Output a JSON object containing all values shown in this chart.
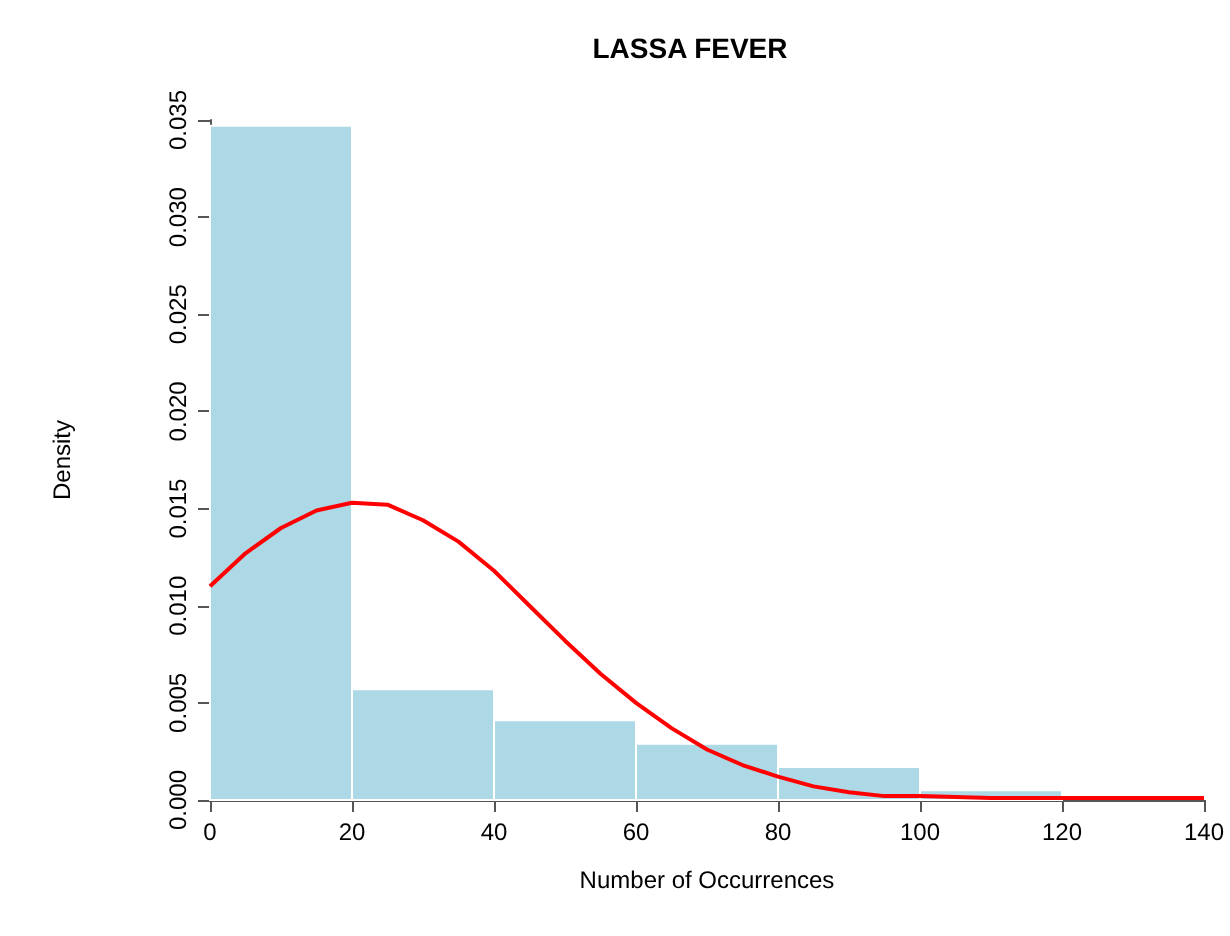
{
  "chart_data": {
    "type": "histogram",
    "title": "LASSA FEVER",
    "xlabel": "Number of Occurrences",
    "ylabel": "Density",
    "series": [
      {
        "color": "#add8e6",
        "bins": [
          0,
          20,
          40,
          60,
          80,
          100,
          120
        ],
        "values": [
          0.0347,
          0.0057,
          0.0041,
          0.0029,
          0.0017,
          0.0005
        ]
      },
      {
        "type": "line",
        "color": "#ff0000",
        "x": [
          0,
          5,
          10,
          15,
          20,
          25,
          30,
          35,
          40,
          45,
          50,
          55,
          60,
          65,
          70,
          75,
          80,
          85,
          90,
          95,
          100,
          110,
          120,
          130,
          140
        ],
        "values": [
          0.011,
          0.0127,
          0.014,
          0.0149,
          0.0153,
          0.0152,
          0.0144,
          0.0133,
          0.0118,
          0.01,
          0.0082,
          0.0065,
          0.005,
          0.0037,
          0.0026,
          0.0018,
          0.0012,
          0.0007,
          0.0004,
          0.0002,
          0.0002,
          0.0001,
          0.0001,
          0.0001,
          0.0001
        ]
      }
    ],
    "xlim": [
      0,
      140
    ],
    "xticks": [
      0,
      20,
      40,
      60,
      80,
      100,
      120,
      140
    ],
    "ylim": [
      0,
      0.035
    ],
    "yticks": [
      {
        "value": 0,
        "label": "0.000"
      },
      {
        "value": 0.005,
        "label": "0.005"
      },
      {
        "value": 0.01,
        "label": "0.010"
      },
      {
        "value": 0.015,
        "label": "0.015"
      },
      {
        "value": 0.02,
        "label": "0.020"
      },
      {
        "value": 0.025,
        "label": "0.025"
      },
      {
        "value": 0.03,
        "label": "0.030"
      },
      {
        "value": 0.035,
        "label": "0.035"
      }
    ],
    "grid": false
  }
}
